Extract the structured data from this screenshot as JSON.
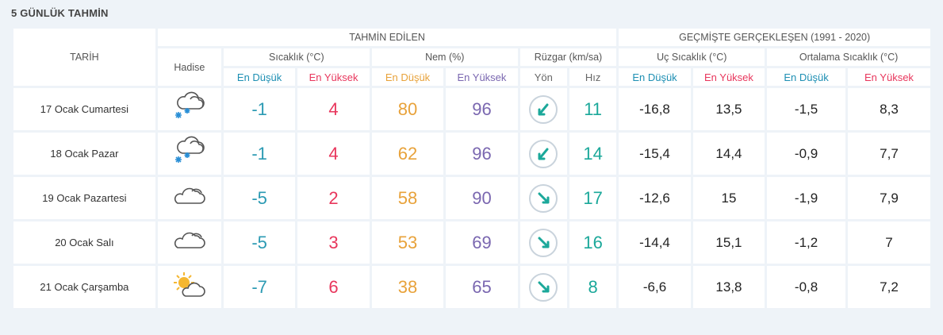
{
  "title": "5 GÜNLÜK TAHMİN",
  "header": {
    "date": "TARİH",
    "forecast": "TAHMİN EDİLEN",
    "history": "GEÇMİŞTE GERÇEKLEŞEN (1991 - 2020)",
    "event": "Hadise",
    "temp": "Sıcaklık (°C)",
    "humidity": "Nem (%)",
    "wind": "Rüzgar (km/sa)",
    "extreme": "Uç Sıcaklık (°C)",
    "average": "Ortalama Sıcaklık (°C)",
    "low": "En Düşük",
    "high": "En Yüksek",
    "dir": "Yön",
    "speed": "Hız"
  },
  "days": [
    {
      "date": "17 Ocak Cumartesi",
      "icon": "cloud-snow-icon",
      "tmin": "-1",
      "tmax": "4",
      "hmin": "80",
      "hmax": "96",
      "dir": "sw",
      "speed": "11",
      "xmin": "-16,8",
      "xmax": "13,5",
      "amin": "-1,5",
      "amax": "8,3"
    },
    {
      "date": "18 Ocak Pazar",
      "icon": "cloud-snow-icon",
      "tmin": "-1",
      "tmax": "4",
      "hmin": "62",
      "hmax": "96",
      "dir": "sw",
      "speed": "14",
      "xmin": "-15,4",
      "xmax": "14,4",
      "amin": "-0,9",
      "amax": "7,7"
    },
    {
      "date": "19 Ocak Pazartesi",
      "icon": "cloud-icon",
      "tmin": "-5",
      "tmax": "2",
      "hmin": "58",
      "hmax": "90",
      "dir": "se",
      "speed": "17",
      "xmin": "-12,6",
      "xmax": "15",
      "amin": "-1,9",
      "amax": "7,9"
    },
    {
      "date": "20 Ocak Salı",
      "icon": "cloud-icon",
      "tmin": "-5",
      "tmax": "3",
      "hmin": "53",
      "hmax": "69",
      "dir": "se",
      "speed": "16",
      "xmin": "-14,4",
      "xmax": "15,1",
      "amin": "-1,2",
      "amax": "7"
    },
    {
      "date": "21 Ocak Çarşamba",
      "icon": "partly-sunny-icon",
      "tmin": "-7",
      "tmax": "6",
      "hmin": "38",
      "hmax": "65",
      "dir": "se",
      "speed": "8",
      "xmin": "-6,6",
      "xmax": "13,8",
      "amin": "-0,8",
      "amax": "7,2"
    }
  ],
  "colors": {
    "low": "#1d8fb3",
    "high": "#e8365c",
    "hum_low": "#e8a23a",
    "hum_high": "#7a67b0",
    "speed": "#1ba89a"
  }
}
